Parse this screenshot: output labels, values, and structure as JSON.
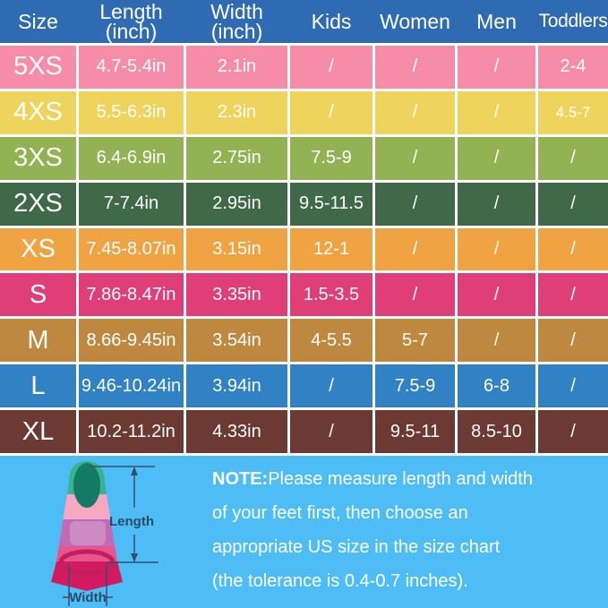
{
  "table": {
    "headers": [
      {
        "line1": "Size",
        "line2": ""
      },
      {
        "line1": "Length",
        "line2": "(inch)"
      },
      {
        "line1": "Width",
        "line2": "(inch)"
      },
      {
        "line1": "Kids",
        "line2": ""
      },
      {
        "line1": "Women",
        "line2": ""
      },
      {
        "line1": "Men",
        "line2": ""
      },
      {
        "line1": "Toddlers",
        "line2": ""
      }
    ],
    "rows": [
      {
        "size": "5XS",
        "color": "#f78ca8",
        "length": "4.7-5.4in",
        "width": "2.1in",
        "kids": "/",
        "women": "/",
        "men": "/",
        "toddlers": "2-4"
      },
      {
        "size": "4XS",
        "color": "#eed45c",
        "length": "5.5-6.3in",
        "width": "2.3in",
        "kids": "/",
        "women": "/",
        "men": "/",
        "toddlers": "4.5-7"
      },
      {
        "size": "3XS",
        "color": "#92b254",
        "length": "6.4-6.9in",
        "width": "2.75in",
        "kids": "7.5-9",
        "women": "/",
        "men": "/",
        "toddlers": "/"
      },
      {
        "size": "2XS",
        "color": "#3f6949",
        "length": "7-7.4in",
        "width": "2.95in",
        "kids": "9.5-11.5",
        "women": "/",
        "men": "/",
        "toddlers": "/"
      },
      {
        "size": "XS",
        "color": "#f0a342",
        "length": "7.45-8.07in",
        "width": "3.15in",
        "kids": "12-1",
        "women": "/",
        "men": "/",
        "toddlers": "/"
      },
      {
        "size": "S",
        "color": "#df3f76",
        "length": "7.86-8.47in",
        "width": "3.35in",
        "kids": "1.5-3.5",
        "women": "/",
        "men": "/",
        "toddlers": "/"
      },
      {
        "size": "M",
        "color": "#bf8840",
        "length": "8.66-9.45in",
        "width": "3.54in",
        "kids": "4-5.5",
        "women": "5-7",
        "men": "/",
        "toddlers": "/"
      },
      {
        "size": "L",
        "color": "#3182c4",
        "length": "9.46-10.24in",
        "width": "3.94in",
        "kids": "/",
        "women": "7.5-9",
        "men": "6-8",
        "toddlers": "/"
      },
      {
        "size": "XL",
        "color": "#6d3a33",
        "length": "10.2-11.2in",
        "width": "4.33in",
        "kids": "/",
        "women": "9.5-11",
        "men": "8.5-10",
        "toddlers": "/"
      }
    ]
  },
  "note": {
    "prefix": "NOTE:",
    "lines": [
      "Please measure length and width",
      "of your feet first, then choose an",
      "appropriate US size in the size chart",
      "(the tolerance is 0.4-0.7 inches)."
    ]
  },
  "fin_diagram": {
    "length_label": "Length",
    "width_label": "Width"
  },
  "colors": {
    "header_bg": "#2e6bb3",
    "footer_bg": "#4ebdf6",
    "grid_line": "#ffffff",
    "header_text": "#ffffff",
    "cell_text": "#ffffff",
    "dimension_line": "#32506b",
    "dimension_label": "#2b4a66",
    "fin_tip": "#3ab28e",
    "fin_tip_opening": "#147a66",
    "fin_band_pink": "#f6a8c2",
    "fin_band_mauve": "#c06cb4",
    "fin_band_mauve_light": "#d190c8",
    "fin_band_rose": "#e8558c",
    "fin_skirt": "#d41a5e",
    "fin_heel_ring": "#c21e60"
  }
}
